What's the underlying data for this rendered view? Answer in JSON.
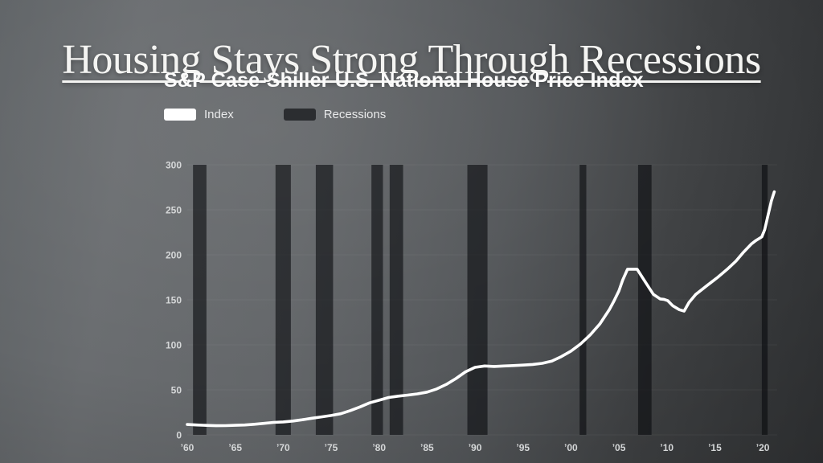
{
  "slide": {
    "title": "Housing Stays Strong Through Recessions"
  },
  "colors": {
    "title": "#f4f4f2",
    "line": "#ffffff",
    "recession": "rgba(8,10,13,0.6)",
    "grid": "rgba(255,255,255,0.05)",
    "tick": "#d5d7d8",
    "legend_index_swatch": "#ffffff",
    "legend_recession_swatch": "#2b2d30",
    "background_left": "#686b6e",
    "background_right": "#313335"
  },
  "chart_data": {
    "type": "line",
    "title": "S&P Case-Shiller U.S. National House Price Index",
    "xlabel": "",
    "ylabel": "",
    "xlim": [
      1960,
      2021.5
    ],
    "ylim": [
      0,
      300
    ],
    "grid": true,
    "legend_position": "top-left",
    "legend": [
      {
        "label": "Index",
        "swatch": "#ffffff"
      },
      {
        "label": "Recessions",
        "swatch": "#2b2d30"
      }
    ],
    "y_ticks": [
      {
        "value": 0,
        "label": "0"
      },
      {
        "value": 50,
        "label": "50"
      },
      {
        "value": 100,
        "label": "100"
      },
      {
        "value": 150,
        "label": "150"
      },
      {
        "value": 200,
        "label": "200"
      },
      {
        "value": 250,
        "label": "250"
      },
      {
        "value": 300,
        "label": "300"
      }
    ],
    "x_ticks": [
      {
        "value": 1960,
        "label": "’60"
      },
      {
        "value": 1965,
        "label": "’65"
      },
      {
        "value": 1970,
        "label": "’70"
      },
      {
        "value": 1975,
        "label": "’75"
      },
      {
        "value": 1980,
        "label": "’80"
      },
      {
        "value": 1985,
        "label": "’85"
      },
      {
        "value": 1990,
        "label": "’90"
      },
      {
        "value": 1995,
        "label": "’95"
      },
      {
        "value": 2000,
        "label": "’00"
      },
      {
        "value": 2005,
        "label": "’05"
      },
      {
        "value": 2010,
        "label": "’10"
      },
      {
        "value": 2015,
        "label": "’15"
      },
      {
        "value": 2020,
        "label": "’20"
      }
    ],
    "recessions": [
      {
        "start": 1960.6,
        "end": 1962.0
      },
      {
        "start": 1969.2,
        "end": 1970.8
      },
      {
        "start": 1973.4,
        "end": 1975.2
      },
      {
        "start": 1979.2,
        "end": 1980.4
      },
      {
        "start": 1981.1,
        "end": 1982.5
      },
      {
        "start": 1989.2,
        "end": 1991.3
      },
      {
        "start": 2000.9,
        "end": 2001.6
      },
      {
        "start": 2007.0,
        "end": 2008.4
      },
      {
        "start": 2019.9,
        "end": 2020.5
      }
    ],
    "series": [
      {
        "name": "Index",
        "color": "#ffffff",
        "points": [
          [
            1960,
            11.5
          ],
          [
            1961,
            11
          ],
          [
            1962,
            10.5
          ],
          [
            1963,
            10.2
          ],
          [
            1964,
            10.3
          ],
          [
            1965,
            10.6
          ],
          [
            1966,
            11
          ],
          [
            1967,
            11.8
          ],
          [
            1968,
            12.8
          ],
          [
            1969,
            13.8
          ],
          [
            1970,
            14.4
          ],
          [
            1971,
            15.4
          ],
          [
            1972,
            16.8
          ],
          [
            1973,
            18.5
          ],
          [
            1974,
            20
          ],
          [
            1975,
            21.5
          ],
          [
            1976,
            23.5
          ],
          [
            1977,
            27
          ],
          [
            1978,
            31
          ],
          [
            1979,
            35.5
          ],
          [
            1980,
            38.5
          ],
          [
            1981,
            41.5
          ],
          [
            1982,
            43
          ],
          [
            1983,
            44.2
          ],
          [
            1984,
            45.5
          ],
          [
            1985,
            47.5
          ],
          [
            1986,
            51
          ],
          [
            1987,
            56
          ],
          [
            1988,
            62.5
          ],
          [
            1989,
            70
          ],
          [
            1990,
            75
          ],
          [
            1991,
            76.5
          ],
          [
            1992,
            76
          ],
          [
            1993,
            76.5
          ],
          [
            1994,
            77
          ],
          [
            1995,
            77.5
          ],
          [
            1996,
            78.2
          ],
          [
            1997,
            79.5
          ],
          [
            1998,
            82
          ],
          [
            1999,
            87
          ],
          [
            2000,
            93
          ],
          [
            2001,
            101
          ],
          [
            2002,
            111
          ],
          [
            2003,
            123
          ],
          [
            2004,
            139
          ],
          [
            2004.5,
            149
          ],
          [
            2005,
            160
          ],
          [
            2005.4,
            172
          ],
          [
            2005.9,
            184
          ],
          [
            2006.9,
            184
          ],
          [
            2007.8,
            169
          ],
          [
            2008.6,
            156
          ],
          [
            2009.3,
            151
          ],
          [
            2009.7,
            150.5
          ],
          [
            2010.1,
            149
          ],
          [
            2010.6,
            143.5
          ],
          [
            2011.3,
            139
          ],
          [
            2011.8,
            137.5
          ],
          [
            2012.3,
            147
          ],
          [
            2013,
            156
          ],
          [
            2014.2,
            166
          ],
          [
            2015.3,
            175
          ],
          [
            2016.3,
            184
          ],
          [
            2017.2,
            193
          ],
          [
            2018,
            203
          ],
          [
            2018.8,
            212
          ],
          [
            2019.3,
            216
          ],
          [
            2019.9,
            220
          ],
          [
            2020.2,
            228
          ],
          [
            2020.5,
            242
          ],
          [
            2020.9,
            260
          ],
          [
            2021.2,
            270
          ]
        ]
      }
    ]
  }
}
